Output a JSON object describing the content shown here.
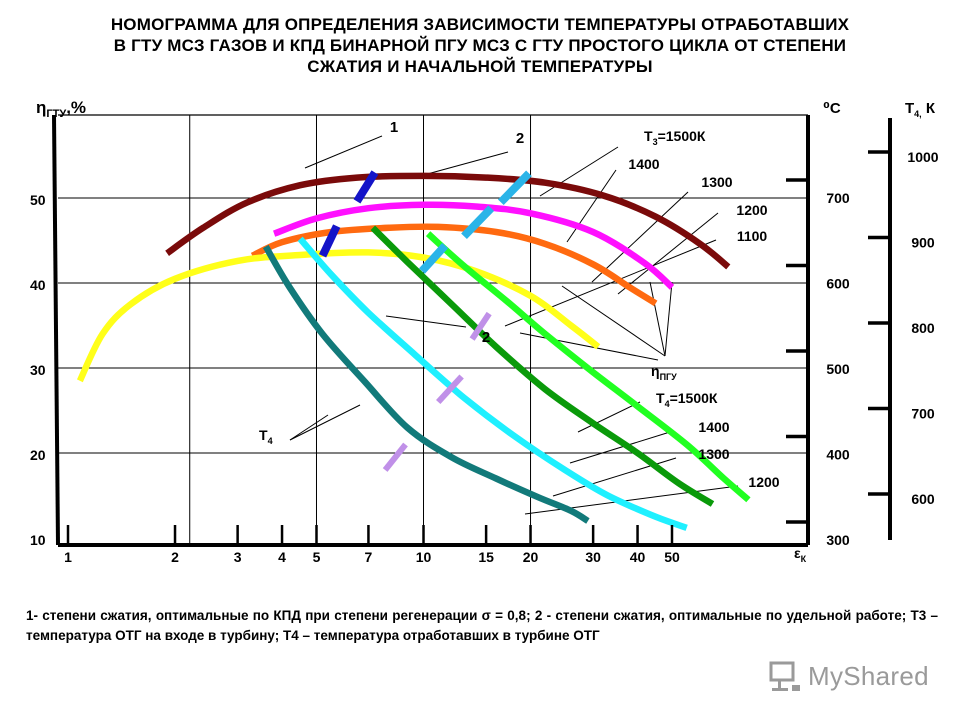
{
  "title": {
    "lines": [
      "НОМОГРАММА ДЛЯ ОПРЕДЕЛЕНИЯ ЗАВИСИМОСТИ ТЕМПЕРАТУРЫ ОТРАБОТАВШИХ",
      "В ГТУ МСЗ ГАЗОВ И КПД БИНАРНОЙ ПГУ МСЗ С ГТУ ПРОСТОГО ЦИКЛА ОТ СТЕПЕНИ",
      "СЖАТИЯ И НАЧАЛЬНОЙ ТЕМПЕРАТУРЫ"
    ]
  },
  "caption": "1- степени сжатия, оптимальные по КПД при степени регенерации σ = 0,8; 2 - степени сжатия, оптимальные по удельной работе; Т3 – температура ОТГ на входе в турбину; Т4 – температура отработавших в турбине ОТГ",
  "watermark": {
    "text": "MyShared"
  },
  "chart_data": {
    "type": "line",
    "title": "",
    "x_axis": {
      "label": "ε",
      "label_sub": "К",
      "scale": "log",
      "ticks": [
        1,
        2,
        3,
        4,
        5,
        7,
        10,
        15,
        20,
        30,
        40,
        50
      ]
    },
    "y_axis": {
      "label": "η",
      "label_sub": "ГТУ",
      "label_suffix": ",%",
      "ylim": [
        10,
        58
      ],
      "ticks": [
        10,
        20,
        30,
        40,
        50
      ]
    },
    "right_axis_celsius": {
      "label": "⁰С",
      "ticks": [
        300,
        400,
        500,
        600,
        700
      ]
    },
    "right_axis_kelvin": {
      "label": "Т",
      "label_sub": "4,",
      "label_suffix": " К",
      "ticks": [
        600,
        700,
        800,
        900,
        1000
      ]
    },
    "grid_x": [
      2.2,
      5,
      10,
      20
    ],
    "grid_y": [
      20,
      30,
      40,
      50
    ],
    "efficiency_series": [
      {
        "name": "1500К",
        "color": "#7a0a0a",
        "x": [
          1.9,
          2.4,
          3.2,
          4.5,
          6.5,
          10,
          15,
          22,
          32,
          45,
          60,
          72
        ],
        "y": [
          43.5,
          46.5,
          49.5,
          51.5,
          52.4,
          52.6,
          52.4,
          51.8,
          50.3,
          47.8,
          44.6,
          41.9
        ]
      },
      {
        "name": "1400",
        "color": "#ff10ff",
        "x": [
          3.8,
          5,
          7,
          10,
          14,
          20,
          30,
          42,
          50
        ],
        "y": [
          45.8,
          47.6,
          48.8,
          49.2,
          49.0,
          48.2,
          46.0,
          42.3,
          39.5
        ]
      },
      {
        "name": "1300",
        "color": "#ff6a10",
        "x": [
          3.3,
          4,
          5.5,
          8,
          11,
          16,
          22,
          30,
          38,
          45
        ],
        "y": [
          43.2,
          44.8,
          46.0,
          46.5,
          46.6,
          46.0,
          44.6,
          42.2,
          39.5,
          37.6
        ]
      },
      {
        "name": "1200",
        "color": "#ffff1a",
        "x": [
          1.08,
          1.25,
          1.5,
          2,
          3,
          4.5,
          7,
          10,
          14,
          20,
          26,
          31
        ],
        "y": [
          28.5,
          34,
          37.5,
          40.5,
          42.6,
          43.3,
          43.6,
          43.0,
          41.4,
          38.5,
          35.0,
          32.5
        ]
      }
    ],
    "temperature_series": [
      {
        "name": "1500К",
        "color": "#0a9a0a",
        "x": [
          7.2,
          9,
          12,
          16,
          22,
          30,
          40,
          52,
          65
        ],
        "y": [
          46.5,
          42.5,
          37.5,
          32.5,
          27.5,
          23.5,
          20.0,
          16.5,
          14.0
        ]
      },
      {
        "name": "1400",
        "color": "#21ff21",
        "x": [
          10.3,
          13,
          17,
          22,
          30,
          40,
          55,
          70,
          82
        ],
        "y": [
          45.8,
          42.0,
          38.0,
          34.0,
          29.5,
          25.5,
          21.0,
          17.0,
          14.5
        ]
      },
      {
        "name": "1300",
        "color": "#1ff0ff",
        "x": [
          4.5,
          5.5,
          7,
          9.5,
          13,
          18,
          25,
          33,
          45,
          55
        ],
        "y": [
          45.2,
          41.0,
          36.5,
          31.5,
          26.5,
          22.0,
          18.0,
          15.0,
          12.5,
          11.2
        ]
      },
      {
        "name": "1200",
        "color": "#127a7a",
        "x": [
          3.6,
          4.2,
          5.2,
          6.8,
          9,
          12,
          16,
          21,
          26,
          29
        ],
        "y": [
          44.3,
          39.5,
          34.0,
          28.5,
          23.0,
          19.5,
          17.0,
          14.8,
          13.2,
          12.0
        ]
      }
    ],
    "optimum_marks_1": [
      {
        "color": "#1414c8",
        "x": [
          6.5,
          7.3
        ],
        "y": [
          49.6,
          53.0
        ]
      },
      {
        "color": "#1414c8",
        "x": [
          5.2,
          5.7
        ],
        "y": [
          43.2,
          46.7
        ]
      }
    ],
    "optimum_marks_2": [
      {
        "color": "#2ab4e8",
        "x": [
          16.5,
          19.8
        ],
        "y": [
          49.5,
          52.9
        ]
      },
      {
        "color": "#2ab4e8",
        "x": [
          13.0,
          15.5
        ],
        "y": [
          45.5,
          48.8
        ]
      },
      {
        "color": "#2ab4e8",
        "x": [
          9.9,
          11.5
        ],
        "y": [
          41.4,
          44.4
        ]
      }
    ],
    "t4_marks": [
      {
        "color": "#c090e8",
        "x": [
          13.7,
          15.3
        ],
        "y": [
          33.4,
          36.4
        ]
      },
      {
        "color": "#c090e8",
        "x": [
          11.0,
          12.8
        ],
        "y": [
          26.0,
          29.0
        ]
      },
      {
        "color": "#c090e8",
        "x": [
          7.8,
          8.9
        ],
        "y": [
          18.0,
          21.0
        ]
      }
    ],
    "annotations": {
      "label_1": "1",
      "label_2_top": "2",
      "label_2_mid": "2",
      "t3": {
        "prefix": "Т",
        "sub": "3",
        "suffix": "=1500К"
      },
      "t3_1400": "1400",
      "t3_1300": "1300",
      "t3_1200": "1200",
      "t3_1100": "1100",
      "eta_pgu": {
        "prefix": "η",
        "sub": "ПГУ"
      },
      "t4": {
        "prefix": "Т",
        "sub": "4",
        "suffix": "=1500К"
      },
      "t4_1400": "1400",
      "t4_1300": "1300",
      "t4_1200": "1200",
      "t4_left": {
        "prefix": "Т",
        "sub": "4"
      }
    }
  }
}
